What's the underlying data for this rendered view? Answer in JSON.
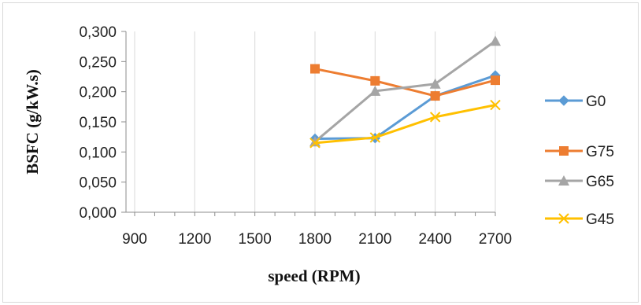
{
  "chart_data": {
    "type": "line",
    "title": "",
    "xlabel": "speed (RPM)",
    "ylabel": "BSFC (g/kW.s)",
    "x_ticks": [
      "900",
      "1200",
      "1500",
      "1800",
      "2100",
      "2400",
      "2700"
    ],
    "x_values": [
      900,
      1200,
      1500,
      1800,
      2100,
      2400,
      2700
    ],
    "y_ticks": [
      "0,000",
      "0,050",
      "0,100",
      "0,150",
      "0,200",
      "0,250",
      "0,300"
    ],
    "ylim": [
      0,
      0.3
    ],
    "xlim": [
      900,
      2700
    ],
    "grid": "vertical",
    "legend_position": "right",
    "series": [
      {
        "name": "G0",
        "color": "#5b9bd5",
        "marker": "diamond",
        "x": [
          1800,
          2100,
          2400,
          2700
        ],
        "values": [
          0.122,
          0.123,
          0.193,
          0.227
        ]
      },
      {
        "name": "G75",
        "color": "#ed7d31",
        "marker": "square",
        "x": [
          1800,
          2100,
          2400,
          2700
        ],
        "values": [
          0.238,
          0.218,
          0.193,
          0.219
        ]
      },
      {
        "name": "G65",
        "color": "#a5a5a5",
        "marker": "triangle",
        "x": [
          1800,
          2100,
          2400,
          2700
        ],
        "values": [
          0.117,
          0.201,
          0.213,
          0.284
        ]
      },
      {
        "name": "G45",
        "color": "#ffc000",
        "marker": "x",
        "x": [
          1800,
          2100,
          2400,
          2700
        ],
        "values": [
          0.115,
          0.124,
          0.158,
          0.178
        ]
      }
    ]
  }
}
